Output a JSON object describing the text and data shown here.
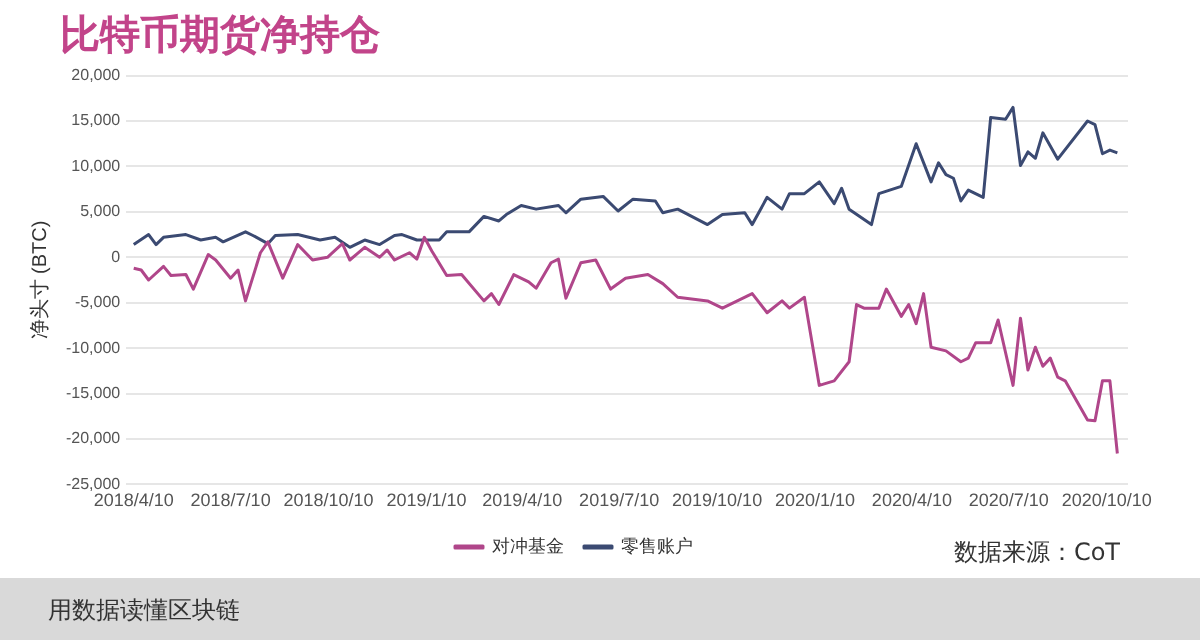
{
  "chart_data": {
    "type": "line",
    "title": "比特币期货净持仓",
    "ylabel": "净头寸 (BTC)",
    "xlim": [
      "2018-04-03",
      "2020-10-30"
    ],
    "xticks": [
      {
        "value": "2018-04-10",
        "label": "2018/4/10"
      },
      {
        "value": "2018-07-10",
        "label": "2018/7/10"
      },
      {
        "value": "2018-10-10",
        "label": "2018/10/10"
      },
      {
        "value": "2019-01-10",
        "label": "2019/1/10"
      },
      {
        "value": "2019-04-10",
        "label": "2019/4/10"
      },
      {
        "value": "2019-07-10",
        "label": "2019/7/10"
      },
      {
        "value": "2019-10-10",
        "label": "2019/10/10"
      },
      {
        "value": "2020-01-10",
        "label": "2020/1/10"
      },
      {
        "value": "2020-04-10",
        "label": "2020/4/10"
      },
      {
        "value": "2020-07-10",
        "label": "2020/7/10"
      },
      {
        "value": "2020-10-10",
        "label": "2020/10/10"
      }
    ],
    "ylim": [
      -25000,
      20000
    ],
    "yticks": [
      {
        "value": -25000,
        "label": "-25,000"
      },
      {
        "value": -20000,
        "label": "-20,000"
      },
      {
        "value": -15000,
        "label": "-15,000"
      },
      {
        "value": -10000,
        "label": "-10,000"
      },
      {
        "value": -5000,
        "label": "-5,000"
      },
      {
        "value": 0,
        "label": "0"
      },
      {
        "value": 5000,
        "label": "5,000"
      },
      {
        "value": 10000,
        "label": "10,000"
      },
      {
        "value": 15000,
        "label": "15,000"
      },
      {
        "value": 20000,
        "label": "20,000"
      }
    ],
    "grid": "y",
    "legend": "bottom",
    "marker": "none",
    "line_style": "solid",
    "series": [
      {
        "name": "对冲基金",
        "color": "#b0468a",
        "x": [
          "2018-04-10",
          "2018-04-17",
          "2018-04-24",
          "2018-05-08",
          "2018-05-15",
          "2018-05-29",
          "2018-06-05",
          "2018-06-19",
          "2018-06-26",
          "2018-07-10",
          "2018-07-17",
          "2018-07-24",
          "2018-08-07",
          "2018-08-14",
          "2018-08-28",
          "2018-09-11",
          "2018-09-25",
          "2018-10-09",
          "2018-10-23",
          "2018-10-30",
          "2018-11-13",
          "2018-11-27",
          "2018-12-04",
          "2018-12-11",
          "2018-12-25",
          "2019-01-01",
          "2019-01-08",
          "2019-01-15",
          "2019-01-29",
          "2019-02-12",
          "2019-03-05",
          "2019-03-12",
          "2019-03-19",
          "2019-04-02",
          "2019-04-16",
          "2019-04-23",
          "2019-05-07",
          "2019-05-14",
          "2019-05-21",
          "2019-06-04",
          "2019-06-18",
          "2019-07-02",
          "2019-07-16",
          "2019-08-06",
          "2019-08-20",
          "2019-09-03",
          "2019-10-01",
          "2019-10-15",
          "2019-11-12",
          "2019-11-26",
          "2019-12-10",
          "2019-12-17",
          "2019-12-31",
          "2020-01-14",
          "2020-01-28",
          "2020-02-11",
          "2020-02-18",
          "2020-02-25",
          "2020-03-10",
          "2020-03-17",
          "2020-03-31",
          "2020-04-07",
          "2020-04-14",
          "2020-04-21",
          "2020-04-28",
          "2020-05-12",
          "2020-05-26",
          "2020-06-02",
          "2020-06-09",
          "2020-06-23",
          "2020-06-30",
          "2020-07-14",
          "2020-07-21",
          "2020-07-28",
          "2020-08-04",
          "2020-08-11",
          "2020-08-18",
          "2020-08-25",
          "2020-09-01",
          "2020-09-22",
          "2020-09-29",
          "2020-10-06",
          "2020-10-13",
          "2020-10-20"
        ],
        "values": [
          -1200,
          -1400,
          -2500,
          -1000,
          -2000,
          -1900,
          -3500,
          300,
          -300,
          -2300,
          -1400,
          -4800,
          500,
          1700,
          -2300,
          1400,
          -300,
          0,
          1500,
          -300,
          1100,
          0,
          800,
          -300,
          500,
          -200,
          2200,
          700,
          -2000,
          -1900,
          -4800,
          -4000,
          -5200,
          -1900,
          -2700,
          -3400,
          -600,
          -200,
          -4500,
          -600,
          -300,
          -3500,
          -2300,
          -1900,
          -2900,
          -4400,
          -4800,
          -5600,
          -4000,
          -6100,
          -4800,
          -5600,
          -4400,
          -14100,
          -13600,
          -11500,
          -5200,
          -5600,
          -5600,
          -3500,
          -6500,
          -5200,
          -7300,
          -4000,
          -9900,
          -10300,
          -11500,
          -11100,
          -9400,
          -9400,
          -6900,
          -14100,
          -6700,
          -12400,
          -9900,
          -12000,
          -11100,
          -13200,
          -13600,
          -17900,
          -18000,
          -13600,
          -13600,
          -21600
        ]
      },
      {
        "name": "零售账户",
        "color": "#3b4a72",
        "x": [
          "2018-04-10",
          "2018-04-24",
          "2018-05-01",
          "2018-05-08",
          "2018-05-29",
          "2018-06-12",
          "2018-06-26",
          "2018-07-03",
          "2018-07-24",
          "2018-07-31",
          "2018-08-14",
          "2018-08-21",
          "2018-09-11",
          "2018-10-02",
          "2018-10-16",
          "2018-10-30",
          "2018-11-13",
          "2018-11-27",
          "2018-12-11",
          "2018-12-18",
          "2019-01-01",
          "2019-01-22",
          "2019-01-29",
          "2019-02-19",
          "2019-03-05",
          "2019-03-19",
          "2019-03-26",
          "2019-04-09",
          "2019-04-23",
          "2019-05-14",
          "2019-05-21",
          "2019-06-04",
          "2019-06-25",
          "2019-07-09",
          "2019-07-23",
          "2019-08-13",
          "2019-08-20",
          "2019-09-03",
          "2019-10-01",
          "2019-10-15",
          "2019-11-05",
          "2019-11-12",
          "2019-11-26",
          "2019-12-10",
          "2019-12-17",
          "2019-12-31",
          "2020-01-14",
          "2020-01-28",
          "2020-02-04",
          "2020-02-11",
          "2020-03-03",
          "2020-03-10",
          "2020-03-31",
          "2020-04-14",
          "2020-04-28",
          "2020-05-05",
          "2020-05-12",
          "2020-05-19",
          "2020-05-26",
          "2020-06-02",
          "2020-06-16",
          "2020-06-23",
          "2020-07-07",
          "2020-07-14",
          "2020-07-21",
          "2020-07-28",
          "2020-08-04",
          "2020-08-11",
          "2020-08-25",
          "2020-09-22",
          "2020-09-29",
          "2020-10-06",
          "2020-10-13",
          "2020-10-20"
        ],
        "values": [
          1400,
          2500,
          1400,
          2200,
          2500,
          1900,
          2200,
          1700,
          2800,
          2400,
          1500,
          2400,
          2500,
          1900,
          2200,
          1100,
          1900,
          1400,
          2400,
          2500,
          1900,
          1900,
          2800,
          2800,
          4500,
          4000,
          4700,
          5700,
          5300,
          5700,
          4900,
          6400,
          6700,
          5100,
          6400,
          6200,
          4900,
          5300,
          3600,
          4700,
          4900,
          3600,
          6600,
          5300,
          7000,
          7000,
          8300,
          5900,
          7600,
          5300,
          3600,
          7000,
          7800,
          12500,
          8300,
          10400,
          9100,
          8700,
          6200,
          7400,
          6600,
          15400,
          15200,
          16500,
          10100,
          11600,
          10900,
          13700,
          10800,
          15000,
          14600,
          11400,
          11800,
          11500
        ]
      }
    ],
    "annotations": [
      "数据来源：CoT",
      "用数据读懂区块链"
    ]
  }
}
